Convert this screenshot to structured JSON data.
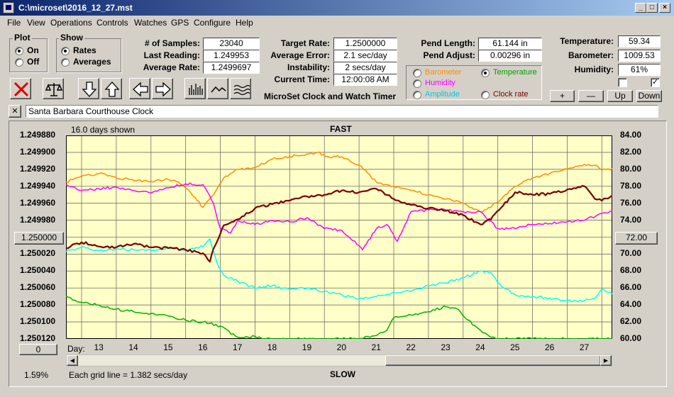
{
  "window": {
    "title": "C:\\microset\\2016_12_27.mst"
  },
  "menu": [
    "File",
    "View",
    "Operations",
    "Controls",
    "Watches",
    "GPS",
    "Configure",
    "Help"
  ],
  "plot_group": {
    "title": "Plot",
    "on": "On",
    "off": "Off",
    "selected": "On"
  },
  "show_group": {
    "title": "Show",
    "rates": "Rates",
    "averages": "Averages",
    "selected": "Rates"
  },
  "stats": {
    "samples_label": "# of Samples:",
    "samples": "23040",
    "last_reading_label": "Last Reading:",
    "last_reading": "1.249953",
    "average_rate_label": "Average Rate:",
    "average_rate": "1.2499697",
    "target_rate_label": "Target Rate:",
    "target_rate": "1.2500000",
    "average_error_label": "Average Error:",
    "average_error": "2.1 sec/day",
    "instability_label": "Instability:",
    "instability": "2 secs/day",
    "current_time_label": "Current Time:",
    "current_time": "12:00:08 AM",
    "pend_length_label": "Pend Length:",
    "pend_length": "61.144 in",
    "pend_adjust_label": "Pend Adjust:",
    "pend_adjust": "0.00296 in",
    "temperature_label": "Temperature:",
    "temperature": "59.34",
    "barometer_label": "Barometer:",
    "barometer": "1009.53",
    "humidity_label": "Humidity:",
    "humidity": "61%"
  },
  "app_caption": "MicroSet Clock and Watch Timer",
  "sensor_options": {
    "barometer": "Barometer",
    "temperature": "Temperature",
    "humidity": "Humidity",
    "amplitude": "Amplitude",
    "clock_rate": "Clock rate",
    "selected": "Temperature"
  },
  "adjust_buttons": {
    "plus": "+",
    "minus": "—",
    "up": "Up",
    "down": "Down"
  },
  "checkboxes": [
    false,
    true
  ],
  "clock_name": "Santa Barbara Courthouse Clock",
  "close_label": "✕",
  "chart_header": {
    "days_shown": "16.0 days shown",
    "fast": "FAST",
    "slow": "SLOW"
  },
  "left_axis_button": "1.250000",
  "right_axis_button": "72.00",
  "zero_button": "0",
  "day_label": "Day:",
  "footer": {
    "percent": "1.59%",
    "grid_note": "Each grid line = 1.382 secs/day"
  },
  "colors": {
    "rate": "#7a0000",
    "temperature": "#ff8c00",
    "humidity": "#ff00ff",
    "amplitude": "#00ffff",
    "barometer": "#00b000",
    "plot_bg": "#ffffc8"
  },
  "chart_data": {
    "type": "line",
    "x_label": "Day:",
    "x_ticks": [
      13,
      14,
      15,
      16,
      17,
      18,
      19,
      20,
      21,
      22,
      23,
      24,
      25,
      26,
      27
    ],
    "xlim": [
      12.05,
      27.8
    ],
    "left_axis": {
      "ticks": [
        "1.249880",
        "1.249900",
        "1.249920",
        "1.249940",
        "1.249960",
        "1.249980",
        "1.250000",
        "1.250020",
        "1.250040",
        "1.250060",
        "1.250080",
        "1.250100",
        "1.250120"
      ],
      "range": [
        1.24988,
        1.25012
      ],
      "inverted": true
    },
    "right_axis": {
      "ticks": [
        "84.00",
        "82.00",
        "80.00",
        "78.00",
        "76.00",
        "74.00",
        "72.00",
        "70.00",
        "68.00",
        "66.00",
        "64.00",
        "62.00",
        "60.00"
      ],
      "range": [
        60,
        84
      ]
    },
    "grid": true,
    "series": [
      {
        "key": "temperature",
        "axis": "right",
        "x": [
          12.05,
          12.5,
          13.0,
          13.5,
          14.0,
          14.5,
          15.0,
          15.3,
          15.6,
          16.0,
          16.3,
          16.6,
          17.0,
          17.5,
          18.0,
          18.5,
          19.0,
          19.3,
          19.6,
          20.0,
          20.5,
          21.0,
          21.5,
          22.0,
          22.5,
          23.0,
          23.5,
          24.0,
          24.3,
          24.6,
          25.0,
          25.5,
          26.0,
          26.5,
          27.0,
          27.3,
          27.5,
          27.8
        ],
        "values": [
          78.5,
          79.2,
          79.5,
          79.0,
          78.7,
          78.6,
          78.8,
          78.5,
          77.5,
          75.5,
          77.0,
          79.0,
          80.0,
          80.2,
          81.2,
          81.5,
          81.8,
          82.0,
          81.5,
          81.5,
          80.5,
          78.5,
          78.0,
          77.5,
          77.0,
          76.5,
          76.0,
          75.0,
          75.5,
          76.5,
          78.0,
          79.0,
          79.5,
          80.0,
          80.6,
          80.5,
          79.9,
          80.1
        ]
      },
      {
        "key": "humidity",
        "axis": "right",
        "x": [
          12.05,
          12.5,
          13.0,
          13.5,
          14.0,
          14.5,
          15.0,
          15.5,
          16.0,
          16.3,
          16.5,
          16.8,
          17.0,
          17.5,
          18.0,
          18.5,
          19.0,
          19.5,
          20.0,
          20.5,
          20.6,
          21.0,
          21.3,
          21.6,
          22.0,
          22.5,
          23.0,
          23.5,
          24.0,
          24.5,
          25.0,
          25.5,
          26.0,
          26.5,
          27.0,
          27.5,
          27.8
        ],
        "values": [
          78.2,
          77.5,
          77.7,
          77.9,
          77.5,
          77.2,
          77.8,
          78.3,
          78.2,
          76.0,
          73.0,
          72.5,
          74.0,
          73.5,
          74.0,
          73.8,
          74.3,
          73.0,
          72.8,
          71.0,
          70.5,
          73.0,
          73.5,
          71.5,
          75.0,
          75.2,
          75.2,
          75.0,
          75.0,
          73.0,
          73.0,
          73.5,
          73.6,
          73.8,
          74.0,
          74.8,
          75.1
        ]
      },
      {
        "key": "amplitude",
        "axis": "right",
        "x": [
          12.05,
          12.5,
          13.0,
          13.5,
          14.0,
          14.5,
          15.0,
          15.5,
          16.0,
          16.2,
          16.4,
          16.6,
          17.0,
          17.5,
          18.0,
          18.5,
          19.0,
          19.5,
          20.0,
          20.5,
          21.0,
          21.5,
          22.0,
          22.5,
          23.0,
          23.5,
          24.0,
          24.3,
          24.6,
          25.0,
          25.5,
          26.0,
          26.5,
          27.0,
          27.3,
          27.5,
          27.8
        ],
        "values": [
          70.3,
          70.8,
          70.4,
          70.6,
          70.5,
          70.4,
          70.7,
          70.5,
          70.9,
          71.8,
          69.0,
          67.5,
          66.8,
          66.0,
          66.3,
          65.8,
          66.0,
          65.6,
          65.2,
          64.7,
          65.0,
          65.5,
          65.6,
          66.3,
          66.6,
          67.2,
          68.0,
          67.8,
          66.2,
          65.2,
          65.0,
          64.8,
          64.5,
          64.5,
          64.8,
          65.9,
          65.3
        ]
      },
      {
        "key": "barometer",
        "axis": "right",
        "x": [
          12.05,
          12.5,
          13.0,
          13.5,
          14.0,
          14.5,
          15.0,
          15.5,
          16.0,
          16.5,
          17.0,
          17.5,
          17.8,
          18.0,
          19.0,
          20.0,
          20.5,
          21.0,
          21.3,
          21.5,
          22.0,
          22.5,
          23.0,
          23.3,
          23.6,
          24.0,
          24.2,
          24.5,
          25.0,
          26.0,
          27.0,
          27.8
        ],
        "values": [
          65.0,
          64.3,
          64.0,
          63.5,
          63.2,
          63.0,
          62.7,
          62.2,
          62.0,
          61.5,
          60.2,
          60.3,
          60.0,
          60.0,
          60.0,
          60.0,
          60.0,
          60.4,
          61.0,
          62.5,
          62.8,
          63.2,
          63.8,
          63.6,
          62.3,
          61.0,
          60.5,
          60.0,
          60.0,
          60.0,
          60.0,
          60.0
        ]
      },
      {
        "key": "rate",
        "axis": "left",
        "x": [
          12.05,
          12.5,
          13.0,
          13.5,
          14.0,
          14.5,
          15.0,
          15.5,
          16.0,
          16.2,
          16.3,
          16.5,
          16.6,
          17.0,
          17.5,
          18.0,
          18.5,
          19.0,
          19.5,
          20.0,
          20.5,
          21.0,
          21.5,
          22.0,
          22.5,
          23.0,
          23.5,
          24.0,
          24.3,
          24.6,
          25.0,
          25.5,
          26.0,
          26.5,
          27.0,
          27.3,
          27.5,
          27.8
        ],
        "values": [
          1.250013,
          1.250006,
          1.250011,
          1.250012,
          1.250008,
          1.250012,
          1.250013,
          1.250015,
          1.250019,
          1.250029,
          1.250014,
          1.249996,
          1.249986,
          1.249979,
          1.249966,
          1.249961,
          1.249957,
          1.249952,
          1.24995,
          1.249945,
          1.249947,
          1.249943,
          1.249955,
          1.249962,
          1.249966,
          1.249969,
          1.249974,
          1.249985,
          1.249979,
          1.249965,
          1.249947,
          1.24995,
          1.249949,
          1.249944,
          1.24994,
          1.249955,
          1.249957,
          1.249951
        ]
      }
    ]
  }
}
